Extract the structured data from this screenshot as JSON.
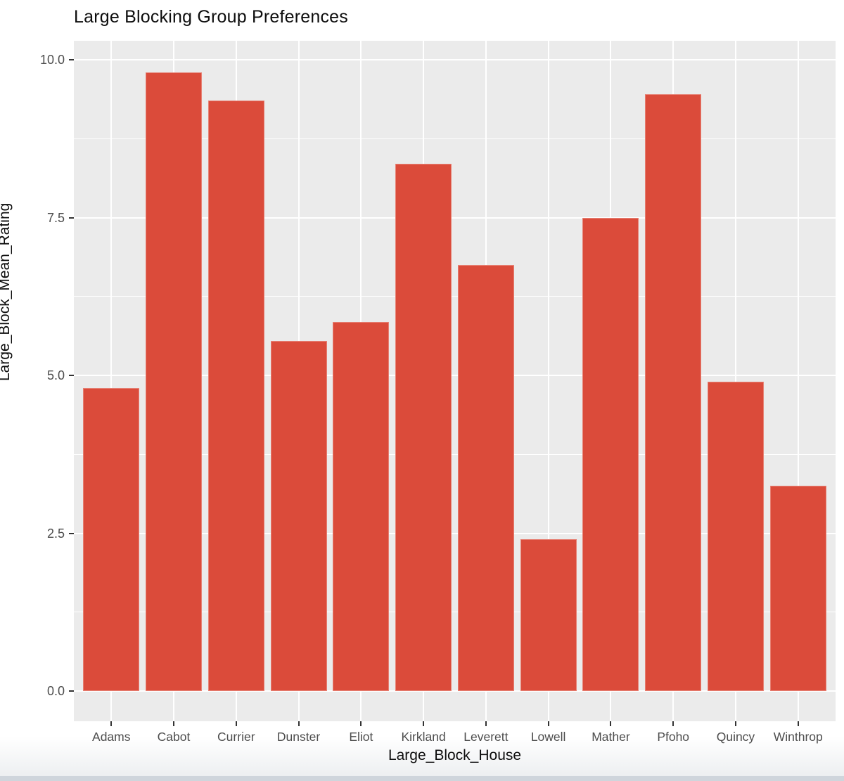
{
  "chart_data": {
    "type": "bar",
    "title": "Large Blocking Group Preferences",
    "xlabel": "Large_Block_House",
    "ylabel": "Large_Block_Mean_Rating",
    "categories": [
      "Adams",
      "Cabot",
      "Currier",
      "Dunster",
      "Eliot",
      "Kirkland",
      "Leverett",
      "Lowell",
      "Mather",
      "Pfoho",
      "Quincy",
      "Winthrop"
    ],
    "values": [
      4.8,
      9.8,
      9.35,
      5.55,
      5.85,
      8.35,
      6.75,
      2.4,
      7.5,
      9.45,
      4.9,
      3.25
    ],
    "ylim": [
      0,
      10
    ],
    "yticks": [
      0.0,
      2.5,
      5.0,
      7.5,
      10.0
    ],
    "ytick_labels": [
      "0.0",
      "2.5",
      "5.0",
      "7.5",
      "10.0"
    ],
    "minor_yticks": [
      1.25,
      3.75,
      6.25,
      8.75
    ],
    "grid": true,
    "legend_position": "none",
    "colors": {
      "bar_fill": "#db4b3a",
      "panel_background": "#ebebeb",
      "gridline": "#ffffff",
      "axis_text": "#4d4d4d",
      "title_text": "#0d0d0d",
      "tick_mark": "#333333",
      "footer_strip": "#cfd5dc"
    }
  }
}
